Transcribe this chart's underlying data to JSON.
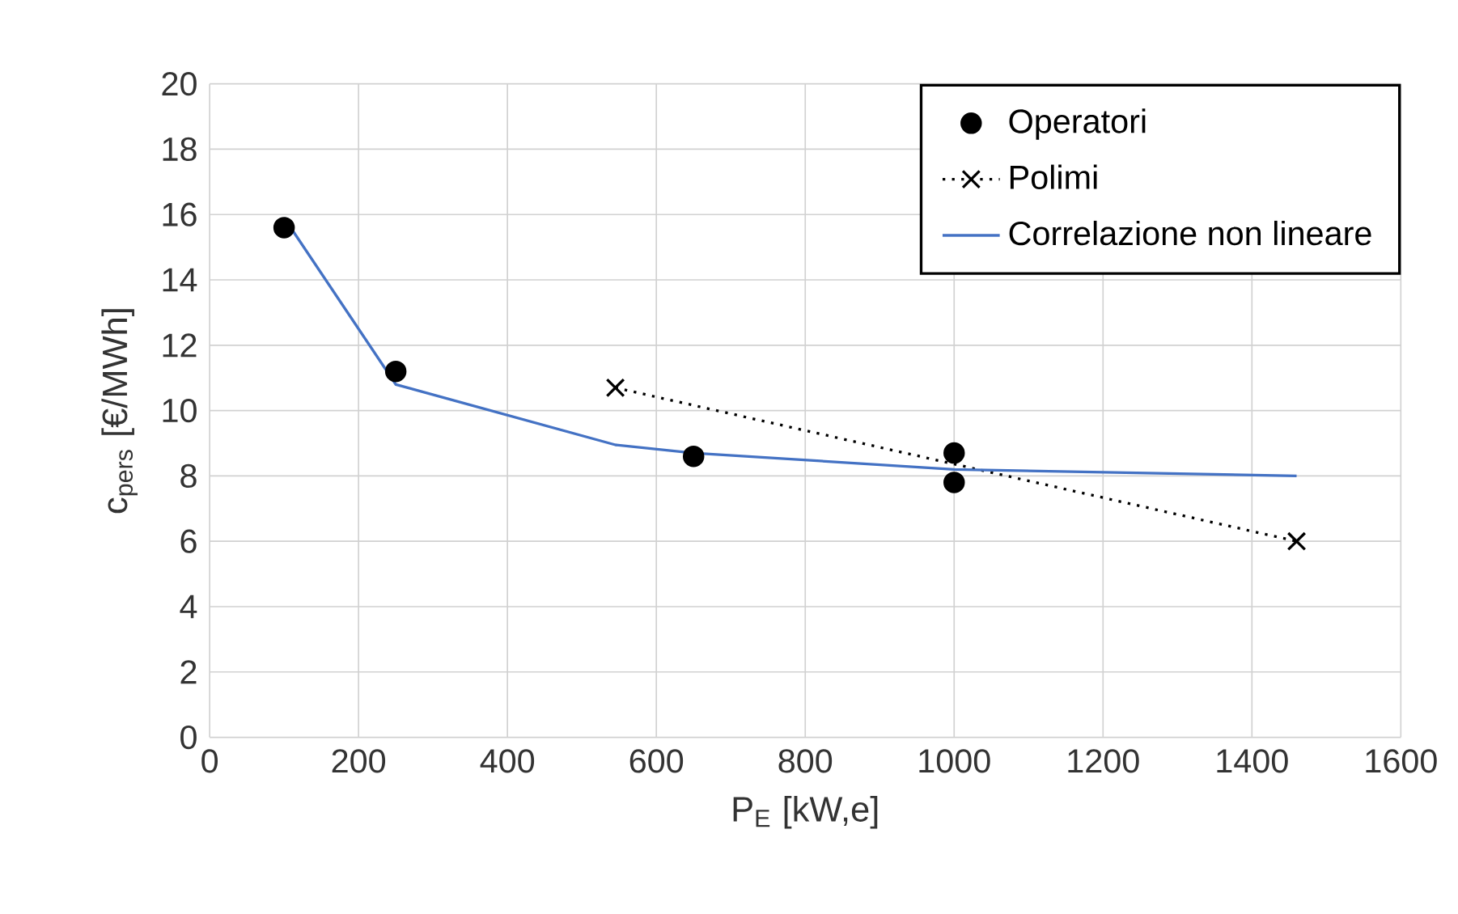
{
  "chart_data": {
    "type": "line",
    "xlabel": "P$_{E}$ [kW,e]",
    "ylabel": "c$_{pers}$ [€/MWh]",
    "xlim": [
      0,
      1600
    ],
    "xticks": [
      0,
      200,
      400,
      600,
      800,
      1000,
      1200,
      1400,
      1600
    ],
    "ylim": [
      0,
      20
    ],
    "yticks": [
      0,
      2,
      4,
      6,
      8,
      10,
      12,
      14,
      16,
      18,
      20
    ],
    "grid": true,
    "legend": "top right",
    "series": [
      {
        "name": "Operatori",
        "type": "scatter",
        "color": "#000000",
        "marker": "circle",
        "x": [
          100,
          250,
          650,
          1000,
          1000
        ],
        "values": [
          15.6,
          11.2,
          8.6,
          8.7,
          7.8
        ]
      },
      {
        "name": "Polimi",
        "type": "line",
        "color": "#000000",
        "marker": "cross",
        "line_style": "dotted",
        "x": [
          545,
          1460
        ],
        "values": [
          10.7,
          6.0
        ]
      },
      {
        "name": "Correlazione non lineare",
        "color": "#4472c4",
        "marker": "none",
        "line_style": "solid",
        "x": [
          100,
          250,
          545,
          650,
          1000,
          1460
        ],
        "values": [
          15.9,
          10.8,
          8.95,
          8.7,
          8.2,
          8.0
        ]
      }
    ]
  }
}
